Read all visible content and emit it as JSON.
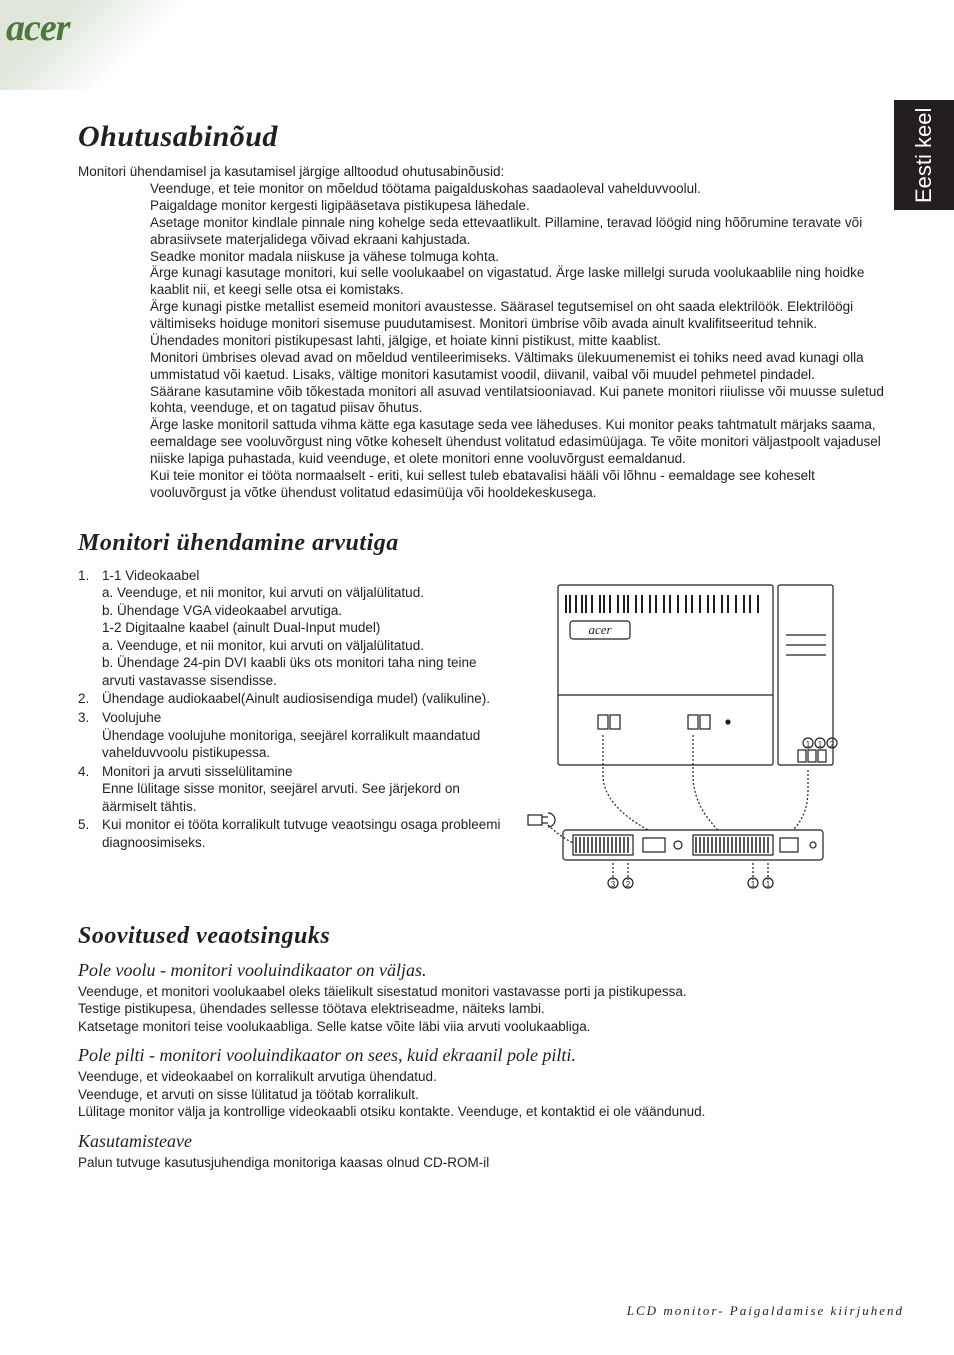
{
  "brand": "acer",
  "sideTab": "Eesti keel",
  "h1": "Ohutusabinõud",
  "safetyLead": "Monitori ühendamisel ja kasutamisel järgige alltoodud ohutusabinõusid:",
  "safety": [
    "Veenduge, et teie monitor on mõeldud töötama paigalduskohas saadaoleval vahelduvvoolul.",
    "Paigaldage monitor kergesti ligipääsetava pistikupesa lähedale.",
    "Asetage monitor kindlale pinnale ning kohelge seda ettevaatlikult. Pillamine, teravad löögid ning hõõrumine teravate või abrasiivsete materjalidega võivad ekraani kahjustada.",
    "Seadke monitor madala niiskuse ja vähese tolmuga kohta.",
    "Ärge kunagi kasutage monitori, kui selle voolukaabel on vigastatud. Ärge laske millelgi suruda voolukaablile ning hoidke kaablit nii, et keegi selle otsa ei komistaks.",
    "Ärge kunagi pistke metallist esemeid monitori avaustesse. Säärasel tegutsemisel on oht saada elektrilöök. Elektrilöögi vältimiseks hoiduge monitori sisemuse puudutamisest. Monitori ümbrise võib avada ainult kvalifitseeritud tehnik.",
    "Ühendades monitori pistikupesast lahti, jälgige, et hoiate kinni pistikust, mitte kaablist.",
    "Monitori ümbrises olevad avad on mõeldud ventileerimiseks. Vältimaks ülekuumenemist ei tohiks need avad kunagi olla ummistatud või kaetud. Lisaks, vältige monitori kasutamist voodil, diivanil, vaibal või muudel pehmetel pindadel.",
    "Säärane kasutamine võib tõkestada monitori all asuvad ventilatsiooniavad. Kui panete monitori riiulisse või muusse suletud kohta, veenduge, et on tagatud piisav õhutus.",
    "Ärge laske monitoril sattuda vihma kätte ega kasutage seda vee läheduses. Kui monitor peaks tahtmatult märjaks saama, eemaldage see vooluvõrgust ning võtke koheselt ühendust volitatud edasimüüjaga. Te võite monitori väljastpoolt vajadusel niiske lapiga puhastada, kuid veenduge, et olete monitori enne vooluvõrgust eemaldanud.",
    "Kui teie monitor ei tööta normaalselt - eriti, kui sellest tuleb ebatavalisi hääli või lõhnu - eemaldage see koheselt vooluvõrgust ja võtke ühendust volitatud edasimüüja või hooldekeskusega."
  ],
  "h2_connect": "Monitori ühendamine arvutiga",
  "connect": [
    {
      "n": "1.",
      "lines": [
        "1-1 Videokaabel",
        "a. Veenduge, et nii monitor, kui arvuti on väljalülitatud.",
        "b. Ühendage VGA videokaabel arvutiga.",
        "1-2 Digitaalne kaabel (ainult Dual-Input mudel)",
        "a. Veenduge, et nii monitor, kui arvuti on väljalülitatud.",
        "b. Ühendage 24-pin DVI kaabli üks ots monitori taha ning teine arvuti vastavasse sisendisse."
      ]
    },
    {
      "n": "2.",
      "lines": [
        "Ühendage audiokaabel(Ainult audiosisendiga mudel) (valikuline)."
      ]
    },
    {
      "n": "3.",
      "lines": [
        "Voolujuhe",
        "Ühendage voolujuhe monitoriga, seejärel korralikult maandatud vahelduvvoolu pistikupessa."
      ]
    },
    {
      "n": "4.",
      "lines": [
        "Monitori ja arvuti sisselülitamine",
        "Enne lülitage sisse monitor, seejärel arvuti. See järjekord on äärmiselt tähtis."
      ]
    },
    {
      "n": "5.",
      "lines": [
        "Kui monitor ei tööta korralikult tutvuge veaotsingu osaga probleemi diagnoosimiseks."
      ]
    }
  ],
  "h2_trouble": "Soovitused veaotsinguks",
  "t1_h": "Pole voolu - monitori vooluindikaator on väljas.",
  "t1": [
    "Veenduge, et monitori voolukaabel oleks täielikult sisestatud monitori vastavasse porti ja pistikupessa.",
    "Testige pistikupesa, ühendades sellesse töötava elektriseadme, näiteks lambi.",
    "Katsetage monitori teise voolukaabliga. Selle katse võite läbi viia arvuti voolukaabliga."
  ],
  "t2_h": "Pole pilti - monitori vooluindikaator on sees, kuid ekraanil pole pilti.",
  "t2": [
    "Veenduge, et videokaabel on korralikult arvutiga ühendatud.",
    "Veenduge, et arvuti on sisse lülitatud ja töötab korralikult.",
    "Lülitage monitor välja ja kontrollige videokaabli otsiku kontakte. Veenduge, et kontaktid ei ole väändunud."
  ],
  "t3_h": "Kasutamisteave",
  "t3": [
    "Palun tutvuge kasutusjuhendiga monitoriga kaasas olnud CD-ROM-il"
  ],
  "footer": "LCD monitor- Paigaldamise kiirjuhend",
  "figure": {
    "stroke": "#231f20",
    "fill": "#ffffff",
    "acerText": "acer"
  }
}
